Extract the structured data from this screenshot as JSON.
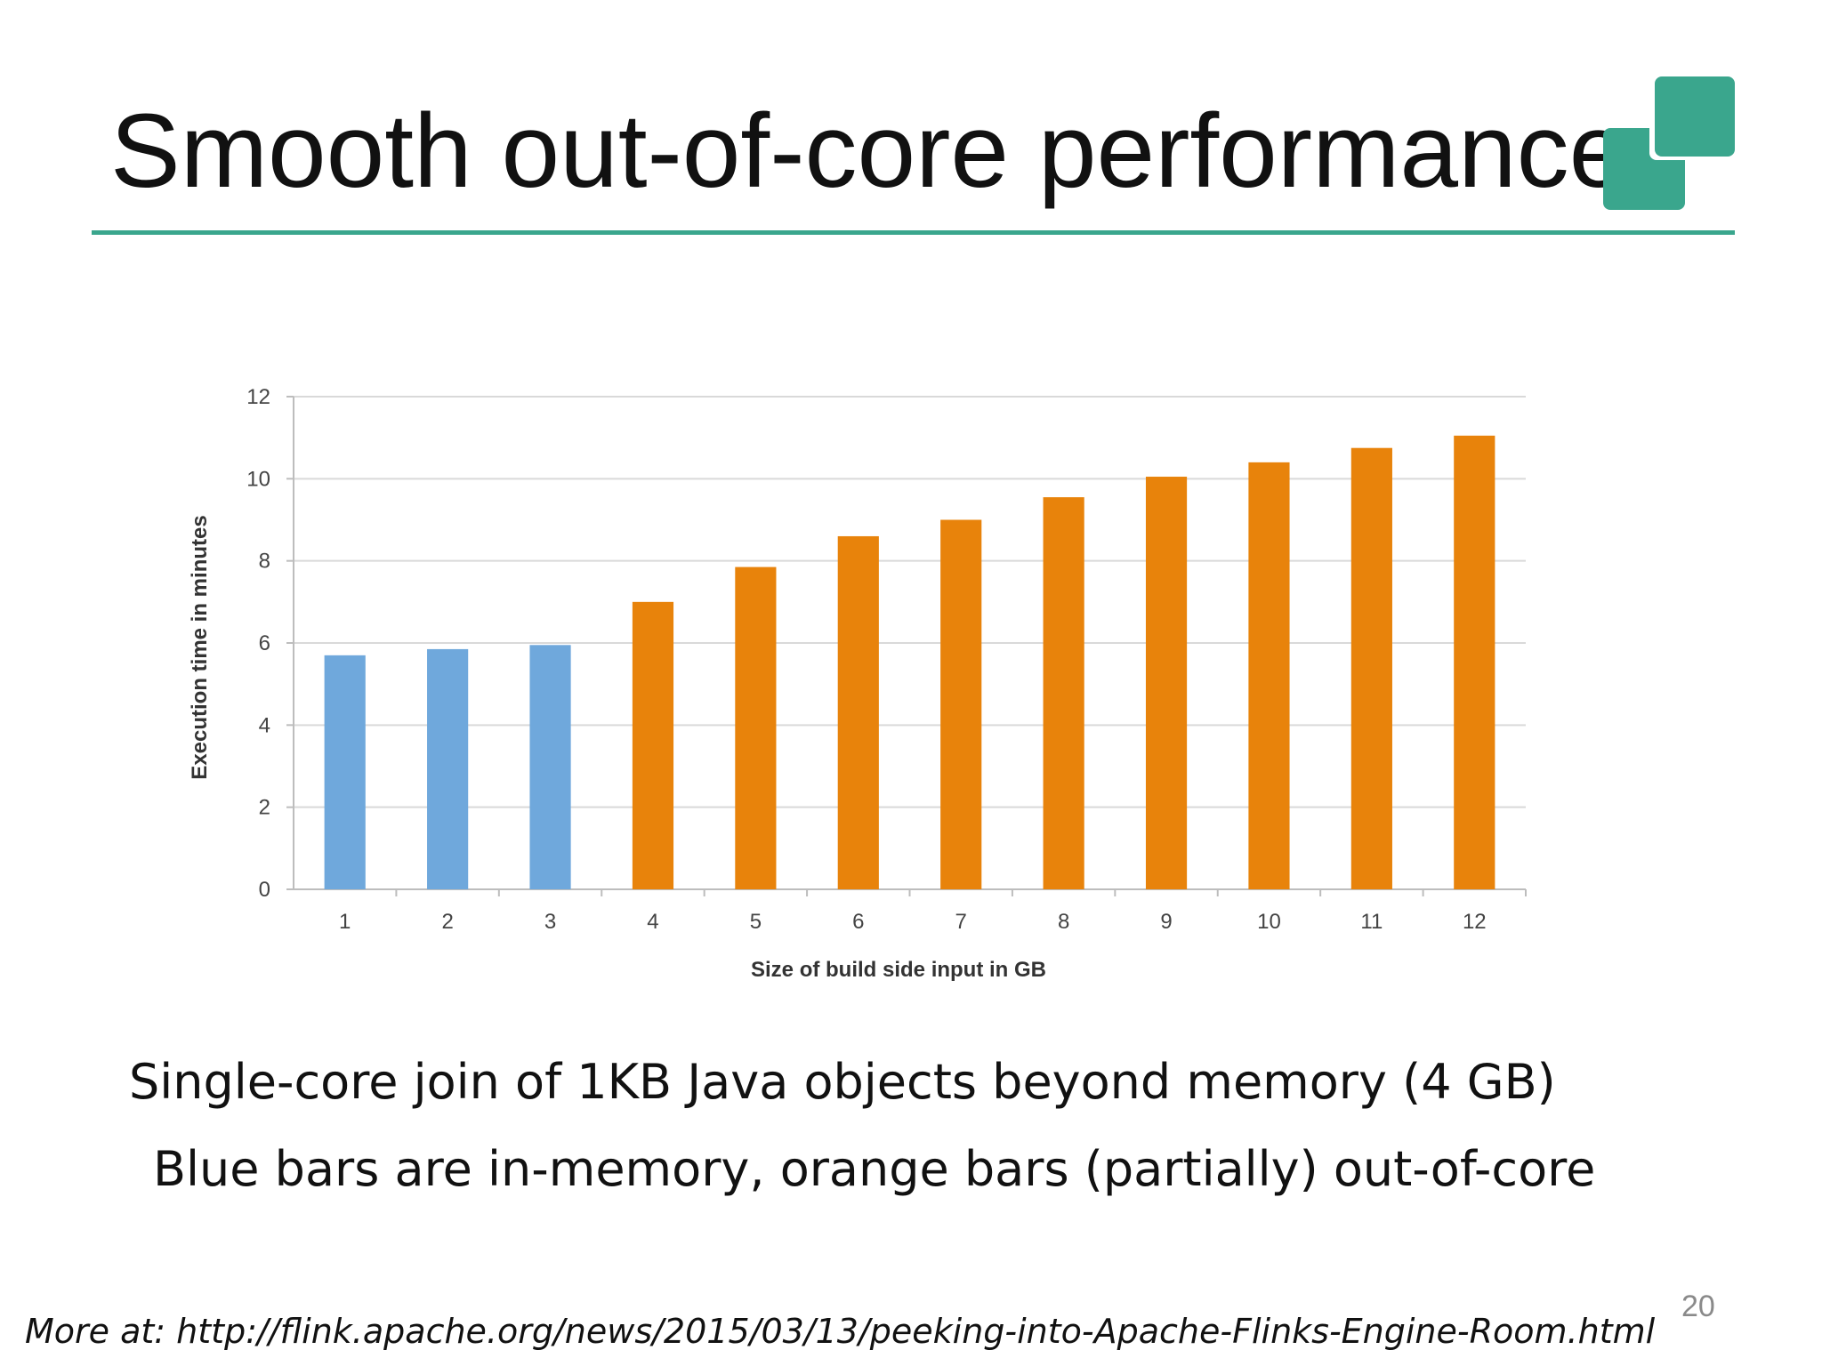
{
  "slide": {
    "title": "Smooth out-of-core performance",
    "caption_line1": "Single-core join of 1KB Java objects beyond memory (4 GB)",
    "caption_line2": "Blue bars are in-memory, orange bars (partially) out-of-core",
    "footer_link": "More at: http://flink.apache.org/news/2015/03/13/peeking-into-Apache-Flinks-Engine-Room.html",
    "page_number": "20",
    "accent_color": "#3aa68d"
  },
  "chart_data": {
    "type": "bar",
    "title": "",
    "xlabel": "Size of build side input in GB",
    "ylabel": "Execution time in minutes",
    "categories": [
      "1",
      "2",
      "3",
      "4",
      "5",
      "6",
      "7",
      "8",
      "9",
      "10",
      "11",
      "12"
    ],
    "values": [
      5.7,
      5.85,
      5.95,
      7.0,
      7.85,
      8.6,
      9.0,
      9.55,
      10.05,
      10.4,
      10.75,
      11.05
    ],
    "bar_colors": [
      "#6fa8dc",
      "#6fa8dc",
      "#6fa8dc",
      "#e8830b",
      "#e8830b",
      "#e8830b",
      "#e8830b",
      "#e8830b",
      "#e8830b",
      "#e8830b",
      "#e8830b",
      "#e8830b"
    ],
    "ylim": [
      0,
      12
    ],
    "yticks": [
      "0",
      "2",
      "4",
      "6",
      "8",
      "10",
      "12"
    ],
    "grid": true,
    "legend": "none"
  }
}
